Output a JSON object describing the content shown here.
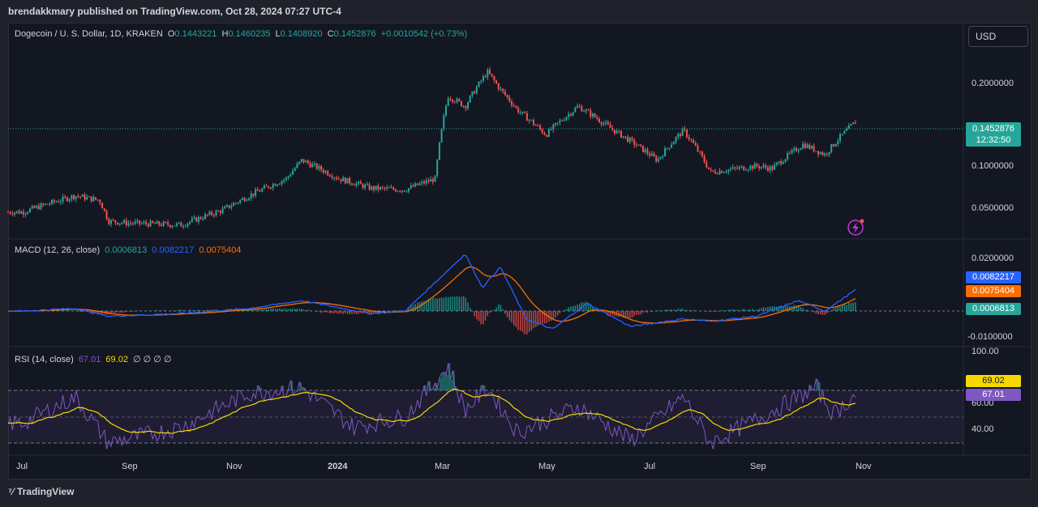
{
  "header": {
    "published": "brendakkmary published on TradingView.com, Oct 28, 2024 07:27 UTC-4"
  },
  "currency_button": "USD",
  "symbol": {
    "name": "Dogecoin / U. S. Dollar, 1D, KRAKEN",
    "o_label": "O",
    "o": "0.1443221",
    "h_label": "H",
    "h": "0.1460235",
    "l_label": "L",
    "l": "0.1408920",
    "c_label": "C",
    "c": "0.1452876",
    "change": "+0.0010542 (+0.73%)"
  },
  "price_tag": {
    "price": "0.1452876",
    "countdown": "12:32:50"
  },
  "macd_legend": {
    "name": "MACD (12, 26, close)",
    "hist": "0.0006813",
    "macd": "0.0082217",
    "signal": "0.0075404"
  },
  "rsi_legend": {
    "name": "RSI (14, close)",
    "rsi": "67.01",
    "ma": "69.02",
    "extra": "∅ ∅ ∅ ∅"
  },
  "footer": {
    "brand": "TradingView"
  },
  "colors": {
    "up": "#26a69a",
    "down": "#ef5350",
    "macd": "#2962ff",
    "signal": "#ff6d00",
    "rsi": "#7e57c2",
    "rsi_ma": "#f5d800"
  },
  "chart_data": [
    {
      "type": "candlestick",
      "title": "Dogecoin / U. S. Dollar, 1D, KRAKEN",
      "y_axis_ticks": [
        "0.2000000",
        "0.1000000",
        "0.0500000"
      ],
      "x_ticks": [
        "Jul",
        "Sep",
        "Nov",
        "2024",
        "Mar",
        "May",
        "Jul",
        "Sep",
        "Nov"
      ],
      "close_path": [
        {
          "date": "2023-07",
          "close": 0.068
        },
        {
          "date": "2023-08-01",
          "close": 0.078
        },
        {
          "date": "2023-08-15",
          "close": 0.075
        },
        {
          "date": "2023-08-20",
          "close": 0.063
        },
        {
          "date": "2023-09",
          "close": 0.062
        },
        {
          "date": "2023-10",
          "close": 0.061
        },
        {
          "date": "2023-10-25",
          "close": 0.069
        },
        {
          "date": "2023-11-10",
          "close": 0.078
        },
        {
          "date": "2023-12-01",
          "close": 0.09
        },
        {
          "date": "2023-12-10",
          "close": 0.105
        },
        {
          "date": "2024-01",
          "close": 0.09
        },
        {
          "date": "2024-01-20",
          "close": 0.083
        },
        {
          "date": "2024-02-10",
          "close": 0.082
        },
        {
          "date": "2024-02-28",
          "close": 0.09
        },
        {
          "date": "2024-03-05",
          "close": 0.18
        },
        {
          "date": "2024-03-15",
          "close": 0.165
        },
        {
          "date": "2024-03-28",
          "close": 0.22
        },
        {
          "date": "2024-04-05",
          "close": 0.19
        },
        {
          "date": "2024-04-15",
          "close": 0.16
        },
        {
          "date": "2024-05-01",
          "close": 0.13
        },
        {
          "date": "2024-05-20",
          "close": 0.165
        },
        {
          "date": "2024-06-10",
          "close": 0.135
        },
        {
          "date": "2024-07-05",
          "close": 0.105
        },
        {
          "date": "2024-07-20",
          "close": 0.135
        },
        {
          "date": "2024-08-05",
          "close": 0.095
        },
        {
          "date": "2024-09-01",
          "close": 0.1
        },
        {
          "date": "2024-09-10",
          "close": 0.098
        },
        {
          "date": "2024-09-28",
          "close": 0.12
        },
        {
          "date": "2024-10-10",
          "close": 0.11
        },
        {
          "date": "2024-10-28",
          "close": 0.1452876
        }
      ]
    },
    {
      "type": "line",
      "title": "MACD (12, 26, close)",
      "y_axis_ticks": [
        "0.0200000",
        "-0.0100000"
      ],
      "series": [
        {
          "name": "MACD",
          "color": "#2962ff",
          "last": 0.0082217
        },
        {
          "name": "Signal",
          "color": "#ff6d00",
          "last": 0.0075404
        },
        {
          "name": "Histogram",
          "last": 0.0006813
        }
      ],
      "macd_path": [
        {
          "date": "2023-07",
          "value": 0.0
        },
        {
          "date": "2023-08-01",
          "value": 0.001
        },
        {
          "date": "2023-08-20",
          "value": -0.002
        },
        {
          "date": "2023-10",
          "value": -0.001
        },
        {
          "date": "2023-11-10",
          "value": 0.001
        },
        {
          "date": "2023-12-10",
          "value": 0.004
        },
        {
          "date": "2024-01-20",
          "value": -0.001
        },
        {
          "date": "2024-02-10",
          "value": 0.0
        },
        {
          "date": "2024-03-15",
          "value": 0.022
        },
        {
          "date": "2024-03-25",
          "value": 0.009
        },
        {
          "date": "2024-04-05",
          "value": 0.017
        },
        {
          "date": "2024-04-20",
          "value": -0.003
        },
        {
          "date": "2024-05-05",
          "value": -0.007
        },
        {
          "date": "2024-05-25",
          "value": 0.003
        },
        {
          "date": "2024-06-20",
          "value": -0.006
        },
        {
          "date": "2024-07-20",
          "value": -0.003
        },
        {
          "date": "2024-08-05",
          "value": -0.004
        },
        {
          "date": "2024-09-01",
          "value": -0.002
        },
        {
          "date": "2024-09-25",
          "value": 0.004
        },
        {
          "date": "2024-10-10",
          "value": 0.0
        },
        {
          "date": "2024-10-28",
          "value": 0.0082217
        }
      ]
    },
    {
      "type": "line",
      "title": "RSI (14, close)",
      "y_axis_ticks": [
        "100.00",
        "60.00",
        "40.00"
      ],
      "series": [
        {
          "name": "RSI",
          "color": "#7e57c2",
          "last": 67.01
        },
        {
          "name": "RSI MA",
          "color": "#f5d800",
          "last": 69.02
        }
      ],
      "rsi_path": [
        {
          "date": "2023-07",
          "value": 45
        },
        {
          "date": "2023-08-01",
          "value": 65
        },
        {
          "date": "2023-08-20",
          "value": 30
        },
        {
          "date": "2023-10",
          "value": 42
        },
        {
          "date": "2023-11-10",
          "value": 68
        },
        {
          "date": "2023-12-10",
          "value": 72
        },
        {
          "date": "2024-01-10",
          "value": 42
        },
        {
          "date": "2024-02-10",
          "value": 50
        },
        {
          "date": "2024-03-05",
          "value": 88
        },
        {
          "date": "2024-03-15",
          "value": 55
        },
        {
          "date": "2024-03-28",
          "value": 72
        },
        {
          "date": "2024-04-15",
          "value": 38
        },
        {
          "date": "2024-05-20",
          "value": 58
        },
        {
          "date": "2024-06-20",
          "value": 32
        },
        {
          "date": "2024-07-20",
          "value": 65
        },
        {
          "date": "2024-08-05",
          "value": 30
        },
        {
          "date": "2024-09-01",
          "value": 48
        },
        {
          "date": "2024-10-05",
          "value": 72
        },
        {
          "date": "2024-10-15",
          "value": 52
        },
        {
          "date": "2024-10-28",
          "value": 67.01
        }
      ]
    }
  ]
}
